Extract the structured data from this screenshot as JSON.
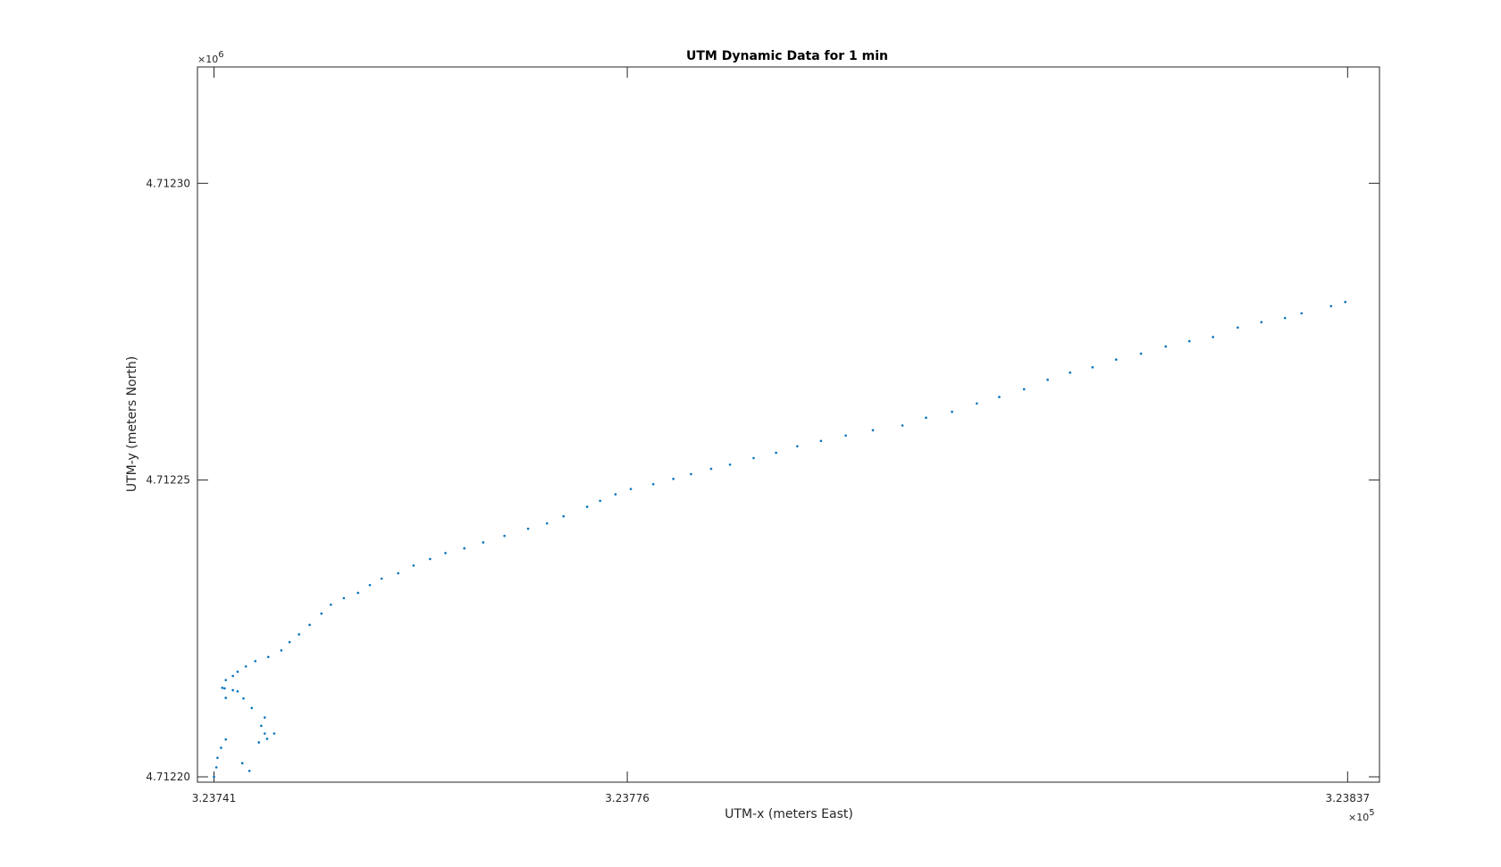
{
  "chart_data": {
    "type": "scatter",
    "title": "UTM Dynamic Data for 1 min",
    "xlabel": "UTM-x (meters East)",
    "ylabel": "UTM-y (meters North)",
    "x_ticks": [
      {
        "value": 323741,
        "label": "3.23741"
      },
      {
        "value": 323776,
        "label": "3.23776"
      },
      {
        "value": 323837,
        "label": "3.23837"
      }
    ],
    "y_ticks": [
      {
        "value": 4712200,
        "label": "4.71220"
      },
      {
        "value": 4712250,
        "label": "4.71225"
      },
      {
        "value": 4712300,
        "label": "4.71230"
      }
    ],
    "x_exponent": {
      "base": "×10",
      "power": "5"
    },
    "y_exponent": {
      "base": "×10",
      "power": "6"
    },
    "xlim": [
      323739.6,
      323839.7
    ],
    "ylim": [
      4712199.1,
      4712319.6
    ],
    "grid": false,
    "color": "#0072BD",
    "series": [
      {
        "x": [
          323741.0,
          323741.2,
          323741.3,
          323741.6,
          323742.0,
          323743.4,
          323744.0,
          323744.8,
          323745.5,
          323746.1,
          323745.3,
          323745.0,
          323745.3,
          323744.2,
          323743.5,
          323743.0,
          323742.6,
          323742.0,
          323741.9,
          323741.7,
          323742.0,
          323742.6,
          323743.0,
          323743.7,
          323744.5,
          323745.6,
          323746.7,
          323747.4,
          323748.2,
          323749.1,
          323750.1,
          323750.9,
          323752.0,
          323753.2,
          323754.2,
          323755.2,
          323756.6,
          323757.9,
          323759.3,
          323760.6,
          323762.2,
          323763.8,
          323765.6,
          323767.6,
          323769.2,
          323770.6,
          323772.6,
          323773.7,
          323775.0,
          323776.3,
          323778.2,
          323779.9,
          323781.4,
          323783.1,
          323784.7,
          323786.7,
          323788.6,
          323790.4,
          323792.4,
          323794.5,
          323796.8,
          323799.3,
          323801.3,
          323803.5,
          323805.6,
          323807.5,
          323809.6,
          323811.6,
          323813.5,
          323815.4,
          323817.4,
          323819.5,
          323821.6,
          323823.6,
          323825.6,
          323827.7,
          323829.7,
          323831.7,
          323833.1,
          323835.6,
          323836.8
        ],
        "y": [
          4712200.0,
          4712201.6,
          4712203.2,
          4712204.9,
          4712206.3,
          4712202.3,
          4712201.0,
          4712205.8,
          4712206.4,
          4712207.3,
          4712207.3,
          4712208.6,
          4712210.0,
          4712211.6,
          4712213.2,
          4712214.4,
          4712214.6,
          4712213.3,
          4712214.9,
          4712215.0,
          4712216.3,
          4712217.0,
          4712217.7,
          4712218.6,
          4712219.5,
          4712220.2,
          4712221.3,
          4712222.7,
          4712224.0,
          4712225.6,
          4712227.5,
          4712229.0,
          4712230.1,
          4712231.0,
          4712232.3,
          4712233.4,
          4712234.3,
          4712235.6,
          4712236.7,
          4712237.7,
          4712238.5,
          4712239.5,
          4712240.6,
          4712241.8,
          4712242.7,
          4712243.9,
          4712245.5,
          4712246.5,
          4712247.6,
          4712248.5,
          4712249.3,
          4712250.2,
          4712251.0,
          4712251.9,
          4712252.6,
          4712253.7,
          4712254.6,
          4712255.7,
          4712256.6,
          4712257.5,
          4712258.4,
          4712259.2,
          4712260.5,
          4712261.5,
          4712262.9,
          4712264.0,
          4712265.3,
          4712266.9,
          4712268.1,
          4712269.0,
          4712270.3,
          4712271.3,
          4712272.5,
          4712273.4,
          4712274.1,
          4712275.7,
          4712276.6,
          4712277.3,
          4712278.1,
          4712279.3,
          4712280.0
        ]
      }
    ]
  }
}
